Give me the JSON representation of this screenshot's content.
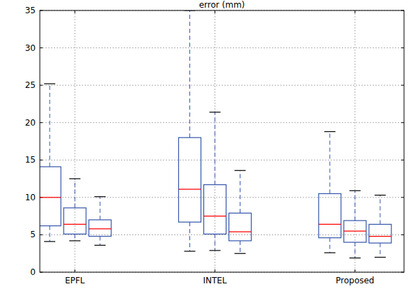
{
  "chart_data": {
    "type": "box",
    "title": "error (mm)",
    "categories": [
      "EPFL",
      "INTEL",
      "Proposed"
    ],
    "boxes": [
      [
        {
          "min": 4.1,
          "q1": 6.2,
          "median": 10.0,
          "q3": 14.1,
          "max": 25.2
        },
        {
          "min": 4.2,
          "q1": 5.1,
          "median": 6.4,
          "q3": 8.6,
          "max": 12.5
        },
        {
          "min": 3.6,
          "q1": 4.8,
          "median": 5.8,
          "q3": 7.0,
          "max": 10.1
        }
      ],
      [
        {
          "min": 2.8,
          "q1": 6.7,
          "median": 11.1,
          "q3": 18.0,
          "max": 35
        },
        {
          "min": 2.9,
          "q1": 5.1,
          "median": 7.5,
          "q3": 11.7,
          "max": 21.4
        },
        {
          "min": 2.5,
          "q1": 4.2,
          "median": 5.4,
          "q3": 7.9,
          "max": 13.6
        }
      ],
      [
        {
          "min": 2.6,
          "q1": 4.6,
          "median": 6.4,
          "q3": 10.5,
          "max": 18.8
        },
        {
          "min": 1.9,
          "q1": 4.0,
          "median": 5.5,
          "q3": 6.9,
          "max": 10.9
        },
        {
          "min": 2.0,
          "q1": 3.9,
          "median": 4.8,
          "q3": 6.4,
          "max": 10.3
        }
      ]
    ],
    "color": "#3355aa",
    "ylim": [
      0,
      35
    ],
    "yticks": [
      0,
      5,
      10,
      15,
      20,
      25,
      30,
      35
    ],
    "grid": true
  }
}
